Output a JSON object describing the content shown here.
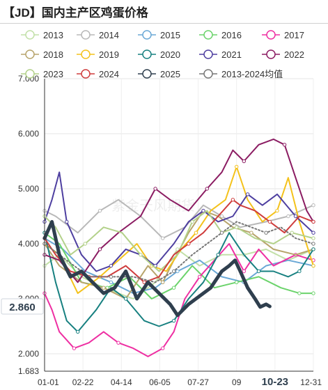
{
  "title": "【JD】国内主产区鸡蛋价格",
  "watermark": "紫金天风期货",
  "chart_data": {
    "type": "line",
    "title": "【JD】国内主产区鸡蛋价格",
    "x_ticks": [
      "01-01",
      "02-22",
      "04-14",
      "06-05",
      "07-27",
      "09",
      "10-23",
      "12-31"
    ],
    "x_highlight": "10-23",
    "y_ticks": [
      "2.000",
      "3.000",
      "4.000",
      "5.000",
      "6.000",
      "7.000"
    ],
    "y_min_label": "1.683",
    "ylim": [
      1.683,
      7.0
    ],
    "current_value_label": "2.860",
    "legend_position": "top",
    "series": [
      {
        "name": "2013",
        "color": "#c2e0a8",
        "points": [
          [
            0,
            3.6
          ],
          [
            20,
            3.8
          ],
          [
            50,
            3.4
          ],
          [
            80,
            3.2
          ],
          [
            120,
            3.0
          ],
          [
            150,
            3.3
          ],
          [
            180,
            3.9
          ],
          [
            210,
            3.6
          ],
          [
            240,
            3.8
          ],
          [
            270,
            3.8
          ],
          [
            300,
            3.9
          ],
          [
            330,
            3.7
          ],
          [
            364,
            3.9
          ]
        ]
      },
      {
        "name": "2014",
        "color": "#b8b8b8",
        "points": [
          [
            0,
            4.6
          ],
          [
            15,
            4.5
          ],
          [
            45,
            4.2
          ],
          [
            75,
            4.6
          ],
          [
            100,
            4.8
          ],
          [
            130,
            4.5
          ],
          [
            160,
            4.1
          ],
          [
            190,
            4.3
          ],
          [
            215,
            4.7
          ],
          [
            240,
            4.5
          ],
          [
            265,
            4.3
          ],
          [
            300,
            4.4
          ],
          [
            330,
            4.5
          ],
          [
            364,
            4.7
          ]
        ]
      },
      {
        "name": "2015",
        "color": "#6aa8d6",
        "points": [
          [
            0,
            4.1
          ],
          [
            25,
            3.9
          ],
          [
            55,
            3.5
          ],
          [
            90,
            3.3
          ],
          [
            120,
            3.1
          ],
          [
            150,
            3.2
          ],
          [
            180,
            3.5
          ],
          [
            210,
            3.7
          ],
          [
            240,
            3.4
          ],
          [
            270,
            3.3
          ],
          [
            300,
            3.6
          ],
          [
            330,
            3.7
          ],
          [
            364,
            3.6
          ]
        ]
      },
      {
        "name": "2016",
        "color": "#6bd36b",
        "points": [
          [
            0,
            4.2
          ],
          [
            20,
            4.0
          ],
          [
            50,
            3.3
          ],
          [
            85,
            3.2
          ],
          [
            115,
            3.4
          ],
          [
            145,
            3.0
          ],
          [
            175,
            3.2
          ],
          [
            200,
            3.6
          ],
          [
            230,
            3.2
          ],
          [
            260,
            3.3
          ],
          [
            290,
            3.4
          ],
          [
            320,
            3.2
          ],
          [
            345,
            3.1
          ],
          [
            364,
            3.1
          ]
        ]
      },
      {
        "name": "2017",
        "color": "#ee2fa2",
        "points": [
          [
            0,
            3.1
          ],
          [
            10,
            2.8
          ],
          [
            20,
            2.4
          ],
          [
            40,
            2.1
          ],
          [
            60,
            2.2
          ],
          [
            80,
            2.4
          ],
          [
            100,
            2.2
          ],
          [
            120,
            2.1
          ],
          [
            140,
            1.95
          ],
          [
            160,
            2.1
          ],
          [
            175,
            2.4
          ],
          [
            190,
            3.0
          ],
          [
            210,
            3.4
          ],
          [
            230,
            3.7
          ],
          [
            250,
            4.0
          ],
          [
            270,
            3.5
          ],
          [
            290,
            3.9
          ],
          [
            310,
            3.6
          ],
          [
            340,
            3.8
          ],
          [
            364,
            3.7
          ]
        ]
      },
      {
        "name": "2018",
        "color": "#b7a46b",
        "points": [
          [
            0,
            4.0
          ],
          [
            20,
            3.6
          ],
          [
            50,
            3.3
          ],
          [
            80,
            3.2
          ],
          [
            110,
            3.0
          ],
          [
            140,
            3.6
          ],
          [
            160,
            3.3
          ],
          [
            175,
            3.7
          ],
          [
            195,
            4.2
          ],
          [
            215,
            4.6
          ],
          [
            235,
            4.5
          ],
          [
            255,
            4.3
          ],
          [
            280,
            4.2
          ],
          [
            310,
            3.9
          ],
          [
            340,
            3.8
          ],
          [
            364,
            3.9
          ]
        ]
      },
      {
        "name": "2019",
        "color": "#f4c21b",
        "points": [
          [
            0,
            4.0
          ],
          [
            20,
            3.8
          ],
          [
            45,
            3.1
          ],
          [
            75,
            3.4
          ],
          [
            100,
            3.7
          ],
          [
            125,
            4.0
          ],
          [
            145,
            3.6
          ],
          [
            165,
            3.5
          ],
          [
            185,
            3.9
          ],
          [
            205,
            4.2
          ],
          [
            225,
            4.6
          ],
          [
            245,
            4.8
          ],
          [
            260,
            5.4
          ],
          [
            275,
            4.8
          ],
          [
            295,
            4.4
          ],
          [
            315,
            4.6
          ],
          [
            330,
            5.2
          ],
          [
            345,
            4.4
          ],
          [
            364,
            3.6
          ]
        ]
      },
      {
        "name": "2020",
        "color": "#178080",
        "points": [
          [
            0,
            4.2
          ],
          [
            15,
            3.3
          ],
          [
            30,
            2.6
          ],
          [
            45,
            2.4
          ],
          [
            70,
            2.8
          ],
          [
            90,
            3.2
          ],
          [
            110,
            3.0
          ],
          [
            135,
            2.6
          ],
          [
            155,
            2.5
          ],
          [
            175,
            2.6
          ],
          [
            195,
            3.0
          ],
          [
            215,
            3.3
          ],
          [
            235,
            3.8
          ],
          [
            250,
            4.2
          ],
          [
            270,
            3.8
          ],
          [
            290,
            3.5
          ],
          [
            310,
            3.5
          ],
          [
            330,
            3.4
          ],
          [
            345,
            3.5
          ],
          [
            364,
            3.9
          ]
        ]
      },
      {
        "name": "2021",
        "color": "#4e3fa0",
        "points": [
          [
            0,
            4.4
          ],
          [
            10,
            4.8
          ],
          [
            20,
            5.3
          ],
          [
            30,
            4.4
          ],
          [
            50,
            3.8
          ],
          [
            70,
            3.5
          ],
          [
            90,
            3.6
          ],
          [
            110,
            3.9
          ],
          [
            130,
            3.8
          ],
          [
            150,
            3.6
          ],
          [
            175,
            4.0
          ],
          [
            195,
            4.4
          ],
          [
            215,
            4.6
          ],
          [
            235,
            4.4
          ],
          [
            255,
            4.5
          ],
          [
            275,
            4.9
          ],
          [
            295,
            4.7
          ],
          [
            315,
            4.9
          ],
          [
            340,
            4.5
          ],
          [
            364,
            4.2
          ]
        ]
      },
      {
        "name": "2022",
        "color": "#8b1c62",
        "points": [
          [
            0,
            3.8
          ],
          [
            20,
            3.7
          ],
          [
            45,
            3.3
          ],
          [
            75,
            3.9
          ],
          [
            100,
            4.2
          ],
          [
            130,
            4.5
          ],
          [
            150,
            5.0
          ],
          [
            170,
            4.8
          ],
          [
            195,
            4.6
          ],
          [
            220,
            5.0
          ],
          [
            240,
            5.3
          ],
          [
            255,
            5.7
          ],
          [
            270,
            5.5
          ],
          [
            290,
            5.8
          ],
          [
            310,
            5.9
          ],
          [
            325,
            5.8
          ],
          [
            340,
            5.2
          ],
          [
            355,
            4.6
          ],
          [
            364,
            4.4
          ]
        ]
      },
      {
        "name": "2023",
        "color": "#b3d18a",
        "points": [
          [
            0,
            4.5
          ],
          [
            15,
            4.3
          ],
          [
            35,
            3.8
          ],
          [
            55,
            4.0
          ],
          [
            80,
            4.3
          ],
          [
            105,
            4.2
          ],
          [
            130,
            3.8
          ],
          [
            155,
            3.5
          ],
          [
            180,
            3.8
          ],
          [
            200,
            4.4
          ],
          [
            220,
            4.6
          ],
          [
            240,
            4.2
          ],
          [
            260,
            4.3
          ],
          [
            285,
            4.1
          ],
          [
            310,
            4.0
          ],
          [
            335,
            4.2
          ],
          [
            364,
            4.1
          ]
        ]
      },
      {
        "name": "2024",
        "color": "#cf3c3c",
        "points": [
          [
            0,
            4.1
          ],
          [
            15,
            3.8
          ],
          [
            35,
            3.5
          ],
          [
            60,
            3.4
          ],
          [
            85,
            3.4
          ],
          [
            110,
            3.6
          ],
          [
            135,
            3.3
          ],
          [
            155,
            3.4
          ],
          [
            175,
            3.8
          ],
          [
            195,
            4.0
          ],
          [
            215,
            4.2
          ],
          [
            235,
            4.5
          ],
          [
            255,
            4.8
          ],
          [
            265,
            4.7
          ],
          [
            285,
            4.6
          ],
          [
            305,
            4.4
          ],
          [
            325,
            4.2
          ],
          [
            345,
            4.5
          ],
          [
            364,
            4.4
          ]
        ]
      },
      {
        "name": "2025",
        "color": "#2f3f4e",
        "points": [
          [
            0,
            4.1
          ],
          [
            10,
            4.4
          ],
          [
            20,
            3.8
          ],
          [
            35,
            3.4
          ],
          [
            50,
            3.5
          ],
          [
            65,
            3.3
          ],
          [
            80,
            3.1
          ],
          [
            95,
            3.2
          ],
          [
            110,
            3.5
          ],
          [
            125,
            3.0
          ],
          [
            140,
            3.3
          ],
          [
            155,
            3.1
          ],
          [
            170,
            2.9
          ],
          [
            180,
            2.7
          ],
          [
            195,
            2.9
          ],
          [
            205,
            3.0
          ],
          [
            215,
            3.1
          ],
          [
            225,
            3.2
          ],
          [
            240,
            3.5
          ],
          [
            250,
            3.6
          ],
          [
            258,
            3.7
          ],
          [
            265,
            3.5
          ],
          [
            275,
            3.2
          ],
          [
            285,
            3.0
          ],
          [
            292,
            2.85
          ],
          [
            300,
            2.9
          ],
          [
            305,
            2.86
          ]
        ]
      },
      {
        "name": "2013-2024均值",
        "color": "#777777",
        "dashed": true,
        "points": [
          [
            0,
            4.0
          ],
          [
            30,
            3.7
          ],
          [
            60,
            3.4
          ],
          [
            90,
            3.4
          ],
          [
            120,
            3.4
          ],
          [
            150,
            3.3
          ],
          [
            175,
            3.5
          ],
          [
            200,
            3.8
          ],
          [
            220,
            4.0
          ],
          [
            240,
            4.2
          ],
          [
            260,
            4.4
          ],
          [
            280,
            4.3
          ],
          [
            300,
            4.2
          ],
          [
            320,
            4.3
          ],
          [
            340,
            4.1
          ],
          [
            364,
            4.0
          ]
        ]
      }
    ]
  }
}
